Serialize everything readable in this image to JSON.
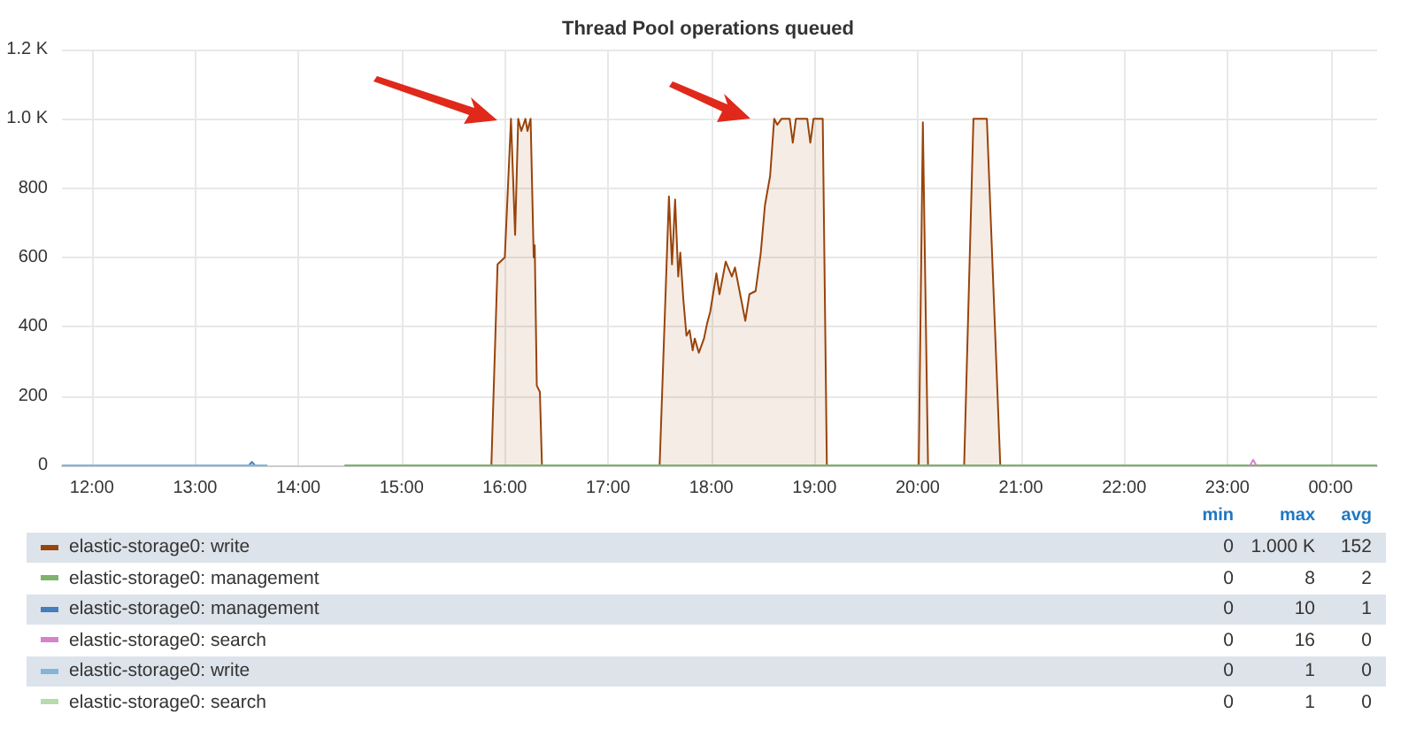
{
  "chart_data": {
    "type": "line",
    "title": "Thread Pool operations queued",
    "xlim": [
      11.71,
      24.45
    ],
    "xticks": [
      {
        "value": 12,
        "label": "12:00"
      },
      {
        "value": 13,
        "label": "13:00"
      },
      {
        "value": 14,
        "label": "14:00"
      },
      {
        "value": 15,
        "label": "15:00"
      },
      {
        "value": 16,
        "label": "16:00"
      },
      {
        "value": 17,
        "label": "17:00"
      },
      {
        "value": 18,
        "label": "18:00"
      },
      {
        "value": 19,
        "label": "19:00"
      },
      {
        "value": 20,
        "label": "20:00"
      },
      {
        "value": 21,
        "label": "21:00"
      },
      {
        "value": 22,
        "label": "22:00"
      },
      {
        "value": 23,
        "label": "23:00"
      },
      {
        "value": 24,
        "label": "00:00"
      }
    ],
    "ylim": [
      0,
      1200
    ],
    "yticks": [
      0,
      200,
      400,
      600,
      800,
      {
        "value": 1000,
        "label": "1.0 K"
      },
      {
        "value": 1200,
        "label": "1.2 K"
      }
    ],
    "grid": true,
    "legend": "bottom",
    "marker": "none",
    "series": [
      {
        "name": "elastic-storage0: write",
        "type": "area",
        "color": "#99440a",
        "x": [
          14.45,
          15.87,
          15.93,
          16.0,
          16.06,
          16.1,
          16.13,
          16.16,
          16.2,
          16.22,
          16.25,
          16.28,
          16.29,
          16.31,
          16.34,
          16.36,
          17.5,
          17.59,
          17.62,
          17.65,
          17.68,
          17.7,
          17.73,
          17.76,
          17.79,
          17.82,
          17.84,
          17.88,
          17.93,
          17.96,
          17.99,
          18.05,
          18.08,
          18.14,
          18.2,
          18.23,
          18.28,
          18.33,
          18.37,
          18.43,
          18.48,
          18.52,
          18.57,
          18.61,
          18.64,
          18.68,
          18.76,
          18.79,
          18.82,
          18.93,
          18.96,
          18.99,
          19.08,
          19.12,
          20.01,
          20.05,
          20.1,
          20.45,
          20.54,
          20.67,
          20.8,
          24.45
        ],
        "values": [
          0,
          0,
          580,
          600,
          1000,
          665,
          1000,
          965,
          1000,
          965,
          1000,
          600,
          635,
          230,
          212,
          0,
          0,
          776,
          580,
          767,
          545,
          614,
          477,
          374,
          390,
          332,
          366,
          325,
          366,
          410,
          443,
          554,
          494,
          588,
          545,
          571,
          494,
          417,
          494,
          503,
          614,
          750,
          835,
          1000,
          983,
          1000,
          1000,
          931,
          1000,
          1000,
          931,
          1000,
          1000,
          0,
          0,
          990,
          0,
          0,
          1000,
          1000,
          0,
          0
        ]
      },
      {
        "name": "elastic-storage0: management",
        "color": "#7eb26d",
        "x": [
          14.45,
          19.0,
          24.45
        ],
        "values": [
          0,
          0,
          0
        ]
      },
      {
        "name": "elastic-storage0: management",
        "color": "#447ebc",
        "x": [
          13.52,
          13.55,
          13.58
        ],
        "values": [
          0,
          10,
          0
        ]
      },
      {
        "name": "elastic-storage0: search",
        "color": "#d683ce",
        "x": [
          23.22,
          23.25,
          23.28
        ],
        "values": [
          0,
          16,
          0
        ]
      },
      {
        "name": "elastic-storage0: write",
        "color": "#82b5d8",
        "x": [
          11.71,
          12.5,
          13.7
        ],
        "values": [
          0,
          0,
          0
        ]
      },
      {
        "name": "elastic-storage0: search",
        "color": "#b7dbab"
      }
    ],
    "annotations": [
      "min",
      "max",
      "avg",
      "0",
      "1.000 K",
      "152",
      "0",
      "8",
      "2",
      "0",
      "10",
      "1",
      "0",
      "16",
      "0",
      "0",
      "1",
      "0",
      "0",
      "1",
      "0"
    ]
  }
}
